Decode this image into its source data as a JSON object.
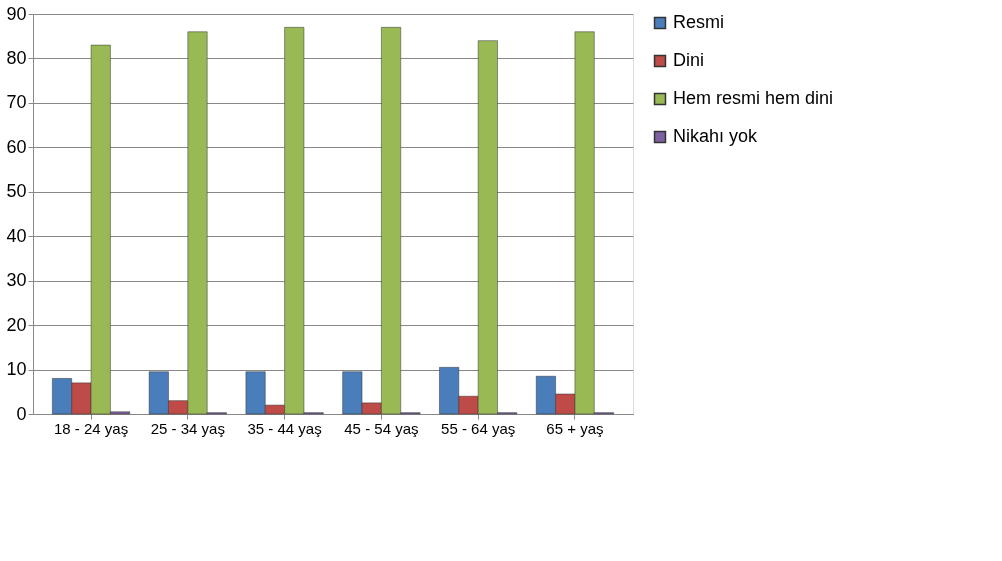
{
  "chart_data": {
    "type": "bar",
    "categories": [
      "18 - 24 yaş",
      "25 - 34 yaş",
      "35 - 44 yaş",
      "45 - 54 yaş",
      "55 - 64 yaş",
      "65 + yaş"
    ],
    "series": [
      {
        "name": "Resmi",
        "color": "#4a7ebb",
        "values": [
          8,
          9.5,
          9.5,
          9.5,
          10.5,
          8.5
        ]
      },
      {
        "name": "Dini",
        "color": "#be4b48",
        "values": [
          7,
          3,
          2,
          2.5,
          4,
          4.5
        ]
      },
      {
        "name": "Hem resmi hem dini",
        "color": "#98b954",
        "values": [
          83,
          86,
          87,
          87,
          84,
          86
        ]
      },
      {
        "name": "Nikahı yok",
        "color": "#7d60a0",
        "values": [
          0.5,
          0.3,
          0.3,
          0.3,
          0.3,
          0.3
        ]
      }
    ],
    "ylim": [
      0,
      90
    ],
    "yticks": [
      0,
      10,
      20,
      30,
      40,
      50,
      60,
      70,
      80,
      90
    ],
    "grid": "y",
    "legend": "right"
  }
}
